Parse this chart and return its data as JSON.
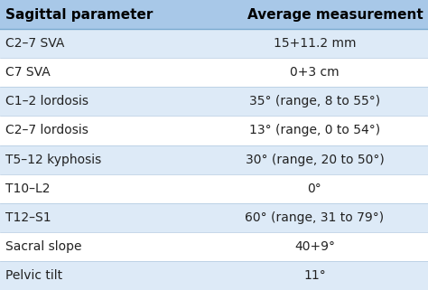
{
  "header": [
    "Sagittal parameter",
    "Average measurement"
  ],
  "rows": [
    [
      "C2–7 SVA",
      "15+11.2 mm"
    ],
    [
      "C7 SVA",
      "0+3 cm"
    ],
    [
      "C1–2 lordosis",
      "35° (range, 8 to 55°)"
    ],
    [
      "C2–7 lordosis",
      "13° (range, 0 to 54°)"
    ],
    [
      "T5–12 kyphosis",
      "30° (range, 20 to 50°)"
    ],
    [
      "T10–L2",
      "0°"
    ],
    [
      "T12–S1",
      "60° (range, 31 to 79°)"
    ],
    [
      "Sacral slope",
      "40+9°"
    ],
    [
      "Pelvic tilt",
      "11°"
    ]
  ],
  "header_bg": "#a8c8e8",
  "row_bg_odd": "#ddeaf7",
  "row_bg_even": "#ffffff",
  "header_fontsize": 11,
  "row_fontsize": 10,
  "header_color": "#000000",
  "row_color": "#222222",
  "fig_bg": "#ffffff",
  "col_split": 0.47,
  "line_color": "#b0c8e0",
  "header_line_color": "#7aaad0"
}
